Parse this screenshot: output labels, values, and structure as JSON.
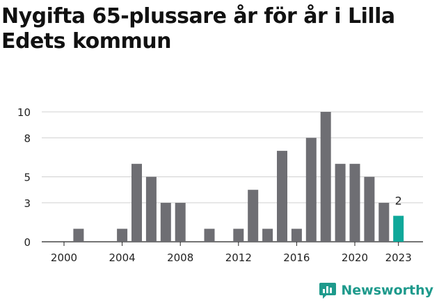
{
  "title": "Nygifta 65-plussare år för år i Lilla Edets kommun",
  "brand": {
    "name": "Newsworthy",
    "icon": "newsworthy-logo-icon",
    "color": "#1e9a8c"
  },
  "colors": {
    "bar": "#6e6e73",
    "highlight": "#0fa89a",
    "grid": "#d0d0d0",
    "axis": "#222222",
    "text": "#222222"
  },
  "chart_data": {
    "type": "bar",
    "title": "Nygifta 65-plussare år för år i Lilla Edets kommun",
    "xlabel": "",
    "ylabel": "",
    "categories": [
      "2000",
      "2001",
      "2002",
      "2003",
      "2004",
      "2005",
      "2006",
      "2007",
      "2008",
      "2009",
      "2010",
      "2011",
      "2012",
      "2013",
      "2014",
      "2015",
      "2016",
      "2017",
      "2018",
      "2019",
      "2020",
      "2021",
      "2022",
      "2023"
    ],
    "values": [
      0,
      1,
      0,
      0,
      1,
      6,
      5,
      3,
      3,
      0,
      1,
      0,
      1,
      4,
      1,
      7,
      1,
      8,
      10,
      6,
      6,
      5,
      3,
      2
    ],
    "ylim": [
      0,
      10
    ],
    "y_ticks": [
      0,
      3,
      5,
      8,
      10
    ],
    "y_tick_labels": [
      "0",
      "3",
      "5",
      "8",
      "10"
    ],
    "x_tick_labels": [
      "2000",
      "2004",
      "2008",
      "2012",
      "2016",
      "2020",
      "2023"
    ],
    "highlight_category": "2023",
    "data_labels": [
      {
        "category": "2023",
        "text": "2"
      }
    ],
    "grid": true
  }
}
